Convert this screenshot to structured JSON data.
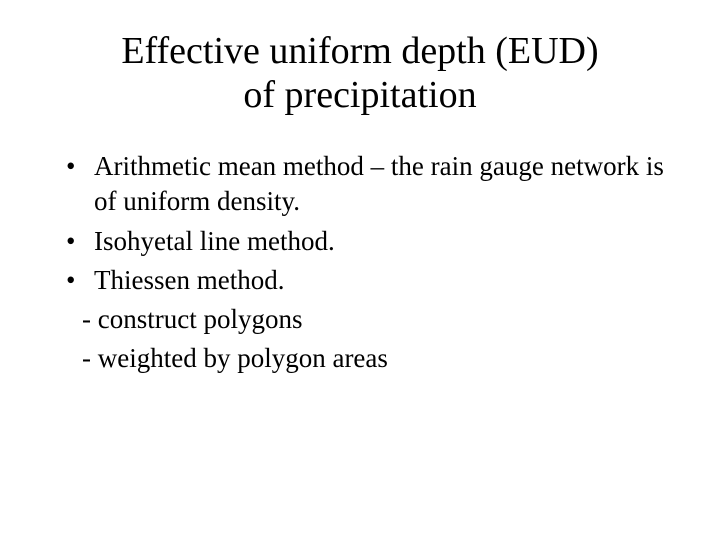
{
  "title_line1": "Effective uniform depth (EUD)",
  "title_line2": "of precipitation",
  "bullets": {
    "b1": "Arithmetic mean method – the rain gauge network is of uniform density.",
    "b2": "Isohyetal line method.",
    "b3": "Thiessen method."
  },
  "subitems": {
    "s1": "- construct polygons",
    "s2": "- weighted by polygon areas"
  },
  "colors": {
    "background": "#ffffff",
    "text": "#000000"
  },
  "typography": {
    "title_fontsize": 38,
    "body_fontsize": 27,
    "font_family": "Times New Roman"
  }
}
